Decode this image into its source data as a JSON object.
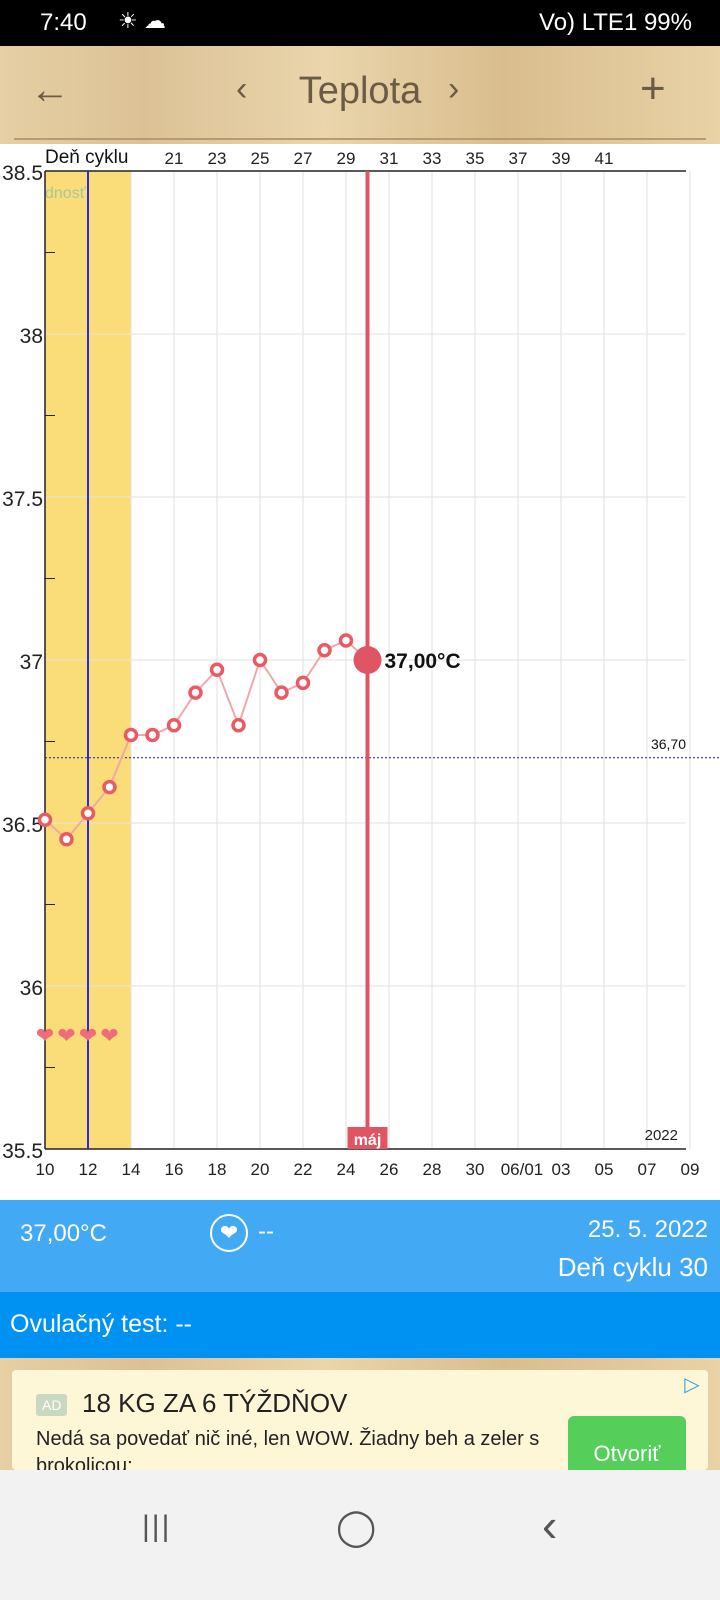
{
  "status_bar": {
    "time": "7:40",
    "weather_icons": "☀ ☁",
    "right": "Vo) LTE1 99%",
    "battery": "99%"
  },
  "app_bar": {
    "title": "Teplota",
    "back_icon": "arrow-left",
    "prev_icon": "chevron-left",
    "next_icon": "chevron-right",
    "add_icon": "plus"
  },
  "chart_data": {
    "type": "line",
    "title": "",
    "top_axis_label": "Deň cyklu",
    "cycle_day_ticks": [
      "21",
      "23",
      "25",
      "27",
      "29",
      "31",
      "33",
      "35",
      "37",
      "39",
      "41"
    ],
    "x_tick_labels": [
      "10",
      "12",
      "14",
      "16",
      "18",
      "20",
      "22",
      "24",
      "26",
      "28",
      "30",
      "06/01",
      "03",
      "05",
      "07",
      "09"
    ],
    "year_label": "2022",
    "month_label": "máj",
    "fertile_label": "dnosť",
    "ylim": [
      35.5,
      38.5
    ],
    "y_tick_labels": [
      "35.5",
      "36",
      "36.5",
      "37",
      "37.5",
      "38",
      "38.5"
    ],
    "grid": true,
    "x_dates": [
      "2022-05-10",
      "2022-05-11",
      "2022-05-12",
      "2022-05-13",
      "2022-05-14",
      "2022-05-15",
      "2022-05-16",
      "2022-05-17",
      "2022-05-18",
      "2022-05-19",
      "2022-05-20",
      "2022-05-21",
      "2022-05-22",
      "2022-05-23",
      "2022-05-24",
      "2022-05-25"
    ],
    "values": [
      36.51,
      36.45,
      36.53,
      36.61,
      36.77,
      36.77,
      36.8,
      36.9,
      36.97,
      36.8,
      37.0,
      36.9,
      36.93,
      37.03,
      37.06,
      37.0
    ],
    "selected_date": "2022-05-25",
    "selected_label": "37,00°C",
    "coverline": 36.7,
    "coverline_label": "36,70",
    "fertile_window": [
      "2022-05-10",
      "2022-05-14"
    ],
    "ovulation_date": "2022-05-12",
    "intercourse_dates": [
      "2022-05-10",
      "2022-05-11",
      "2022-05-12",
      "2022-05-13"
    ],
    "colors": {
      "series": "#f0a8aa",
      "point": "#ea5a62",
      "selected": "#e05563",
      "fertile": "#fadd78",
      "ovulation": "#2a2ad8",
      "coverline": "#1c1c8a",
      "heart": "#f26b7a"
    }
  },
  "info": {
    "temperature": "37,00°C",
    "intercourse": "--",
    "date": "25. 5. 2022",
    "cycle_day": "Deň cyklu 30"
  },
  "ovulation_test": {
    "text": "Ovulačný test: --"
  },
  "ad": {
    "badge": "AD",
    "headline": "18 KG ZA 6 TÝŽDŇOV",
    "body": "Nedá sa povedať nič iné, len WOW. Žiadny beh a zeler s brokolicou:",
    "button": "Otvoriť"
  },
  "nav_bar": {
    "recent": "|||",
    "home": "◯",
    "back": "‹"
  }
}
